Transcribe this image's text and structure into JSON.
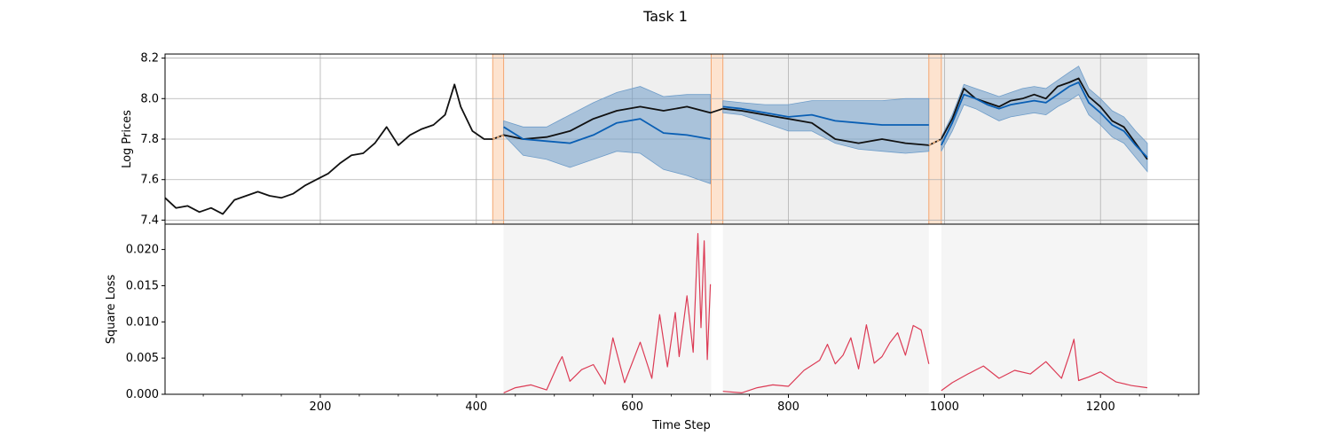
{
  "chart_data": {
    "title": "Task 1",
    "xlabel": "Time Step",
    "xlim": [
      1,
      1326
    ],
    "x_ticks": [
      200,
      400,
      600,
      800,
      1000,
      1200
    ],
    "x_minor_step": 50,
    "segments": [
      [
        421,
        435
      ],
      [
        701,
        716
      ],
      [
        980,
        996
      ]
    ],
    "eval_regions": [
      [
        435,
        701
      ],
      [
        716,
        980
      ],
      [
        996,
        1260
      ]
    ],
    "colors": {
      "actual": "#111111",
      "prediction": "#0a5fb4",
      "band": "#6f9dc9",
      "segment_fill": "#fde3cf",
      "segment_edge": "#f4a672",
      "gap": "#f5b27a",
      "loss": "#dc3b55",
      "eval_shade": "#eeeeee"
    },
    "panels": [
      {
        "type": "line",
        "ylabel": "Log Prices",
        "ylim": [
          7.38,
          8.22
        ],
        "yticks": [
          "7.4",
          "7.6",
          "7.8",
          "8.0",
          "8.2"
        ],
        "grid": true,
        "series": [
          {
            "role": "actual",
            "x": [
              1,
              15,
              30,
              45,
              60,
              75,
              90,
              105,
              120,
              135,
              150,
              165,
              180,
              195,
              210,
              225,
              240,
              255,
              270,
              285,
              300,
              315,
              330,
              345,
              360,
              372,
              380,
              395,
              410,
              421,
              435,
              460,
              490,
              520,
              550,
              580,
              610,
              640,
              670,
              700,
              716,
              740,
              770,
              800,
              830,
              860,
              890,
              920,
              950,
              980,
              996,
              1010,
              1025,
              1040,
              1055,
              1070,
              1085,
              1100,
              1115,
              1130,
              1145,
              1160,
              1172,
              1185,
              1200,
              1215,
              1230,
              1245,
              1260
            ],
            "y": [
              7.51,
              7.46,
              7.47,
              7.44,
              7.46,
              7.43,
              7.5,
              7.52,
              7.54,
              7.52,
              7.51,
              7.53,
              7.57,
              7.6,
              7.63,
              7.68,
              7.72,
              7.73,
              7.78,
              7.86,
              7.77,
              7.82,
              7.85,
              7.87,
              7.92,
              8.07,
              7.96,
              7.84,
              7.8,
              7.8,
              7.82,
              7.8,
              7.81,
              7.84,
              7.9,
              7.94,
              7.96,
              7.94,
              7.96,
              7.93,
              7.95,
              7.94,
              7.92,
              7.9,
              7.88,
              7.8,
              7.78,
              7.8,
              7.78,
              7.77,
              7.8,
              7.9,
              8.05,
              8.0,
              7.98,
              7.96,
              7.99,
              8.0,
              8.02,
              8.0,
              8.06,
              8.08,
              8.1,
              8.01,
              7.96,
              7.89,
              7.86,
              7.78,
              7.7
            ]
          },
          {
            "role": "prediction",
            "x": [
              435,
              460,
              490,
              520,
              550,
              580,
              610,
              640,
              670,
              700,
              716,
              740,
              770,
              800,
              830,
              860,
              890,
              920,
              950,
              980,
              996,
              1010,
              1025,
              1040,
              1055,
              1070,
              1085,
              1100,
              1115,
              1130,
              1145,
              1160,
              1172,
              1185,
              1200,
              1215,
              1230,
              1245,
              1260
            ],
            "y": [
              7.86,
              7.8,
              7.79,
              7.78,
              7.82,
              7.88,
              7.9,
              7.83,
              7.82,
              7.8,
              7.96,
              7.95,
              7.93,
              7.91,
              7.92,
              7.89,
              7.88,
              7.87,
              7.87,
              7.87,
              7.77,
              7.88,
              8.02,
              8.0,
              7.97,
              7.95,
              7.97,
              7.98,
              7.99,
              7.98,
              8.02,
              8.06,
              8.08,
              7.98,
              7.93,
              7.87,
              7.84,
              7.77,
              7.71
            ]
          }
        ],
        "band": {
          "x": [
            435,
            460,
            490,
            520,
            550,
            580,
            610,
            640,
            670,
            700,
            716,
            740,
            770,
            800,
            830,
            860,
            890,
            920,
            950,
            980,
            996,
            1010,
            1025,
            1040,
            1055,
            1070,
            1085,
            1100,
            1115,
            1130,
            1145,
            1160,
            1172,
            1185,
            1200,
            1215,
            1230,
            1245,
            1260
          ],
          "lower": [
            7.82,
            7.72,
            7.7,
            7.66,
            7.7,
            7.74,
            7.73,
            7.65,
            7.62,
            7.58,
            7.93,
            7.92,
            7.88,
            7.84,
            7.84,
            7.78,
            7.75,
            7.74,
            7.73,
            7.74,
            7.74,
            7.84,
            7.97,
            7.95,
            7.92,
            7.89,
            7.91,
            7.92,
            7.93,
            7.92,
            7.96,
            7.99,
            8.02,
            7.92,
            7.87,
            7.81,
            7.78,
            7.71,
            7.64
          ],
          "upper": [
            7.89,
            7.86,
            7.86,
            7.92,
            7.98,
            8.03,
            8.06,
            8.01,
            8.02,
            8.02,
            7.99,
            7.98,
            7.97,
            7.97,
            7.99,
            7.99,
            7.99,
            7.99,
            8.0,
            8.0,
            7.81,
            7.92,
            8.07,
            8.05,
            8.03,
            8.01,
            8.03,
            8.05,
            8.06,
            8.05,
            8.09,
            8.13,
            8.16,
            8.05,
            8.0,
            7.94,
            7.91,
            7.84,
            7.78
          ]
        }
      },
      {
        "type": "line",
        "ylabel": "Square Loss",
        "ylim": [
          0,
          0.0235
        ],
        "yticks": [
          "0.000",
          "0.005",
          "0.010",
          "0.015",
          "0.020"
        ],
        "grid": false,
        "series": [
          {
            "role": "loss",
            "x": [
              435,
              450,
              470,
              490,
              505,
              510,
              520,
              535,
              550,
              565,
              575,
              590,
              610,
              625,
              635,
              645,
              655,
              660,
              670,
              678,
              684,
              688,
              692,
              696,
              700,
              716,
              740,
              760,
              780,
              800,
              820,
              840,
              850,
              860,
              870,
              880,
              890,
              900,
              910,
              920,
              930,
              940,
              950,
              960,
              970,
              980,
              996,
              1010,
              1030,
              1050,
              1070,
              1090,
              1110,
              1130,
              1150,
              1160,
              1166,
              1172,
              1185,
              1200,
              1220,
              1240,
              1260
            ],
            "y": [
              0.0002,
              0.0009,
              0.0013,
              0.0006,
              0.0042,
              0.0052,
              0.0018,
              0.0034,
              0.0041,
              0.0014,
              0.0078,
              0.0016,
              0.0072,
              0.0022,
              0.011,
              0.0038,
              0.0113,
              0.0052,
              0.0136,
              0.0058,
              0.0222,
              0.0092,
              0.0212,
              0.0048,
              0.0152,
              0.0004,
              0.0002,
              0.0009,
              0.0013,
              0.0011,
              0.0033,
              0.0047,
              0.0069,
              0.0042,
              0.0054,
              0.0078,
              0.0035,
              0.0096,
              0.0043,
              0.0052,
              0.0071,
              0.0085,
              0.0054,
              0.0095,
              0.0089,
              0.0042,
              0.0005,
              0.0016,
              0.0028,
              0.0039,
              0.0022,
              0.0033,
              0.0028,
              0.0045,
              0.0022,
              0.0054,
              0.0076,
              0.0019,
              0.0024,
              0.0031,
              0.0017,
              0.0012,
              0.0009
            ]
          }
        ]
      }
    ]
  }
}
